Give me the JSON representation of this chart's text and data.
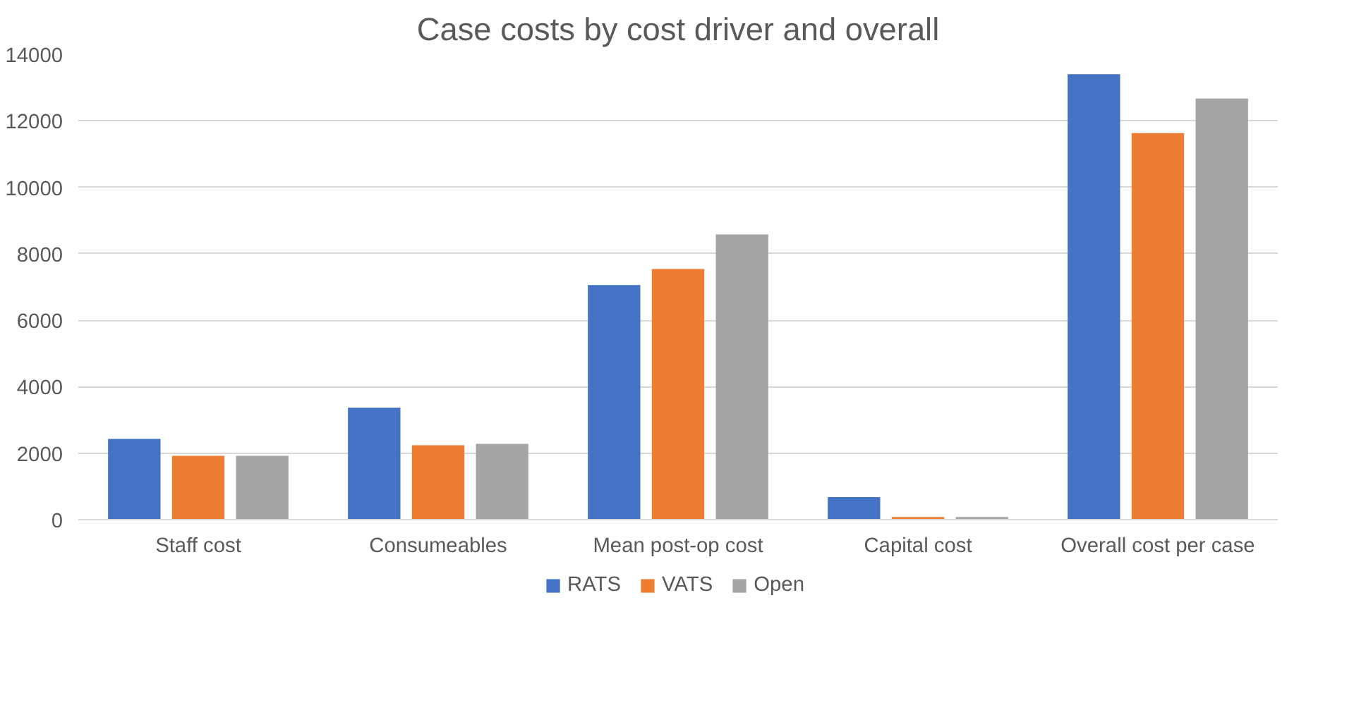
{
  "chart_data": {
    "type": "bar",
    "title": "Case costs by cost driver and overall",
    "categories": [
      "Staff cost",
      "Consumeables",
      "Mean post-op cost",
      "Capital cost",
      "Overall cost per case"
    ],
    "series": [
      {
        "name": "RATS",
        "color": "#4472c4",
        "values": [
          2430,
          3370,
          7060,
          680,
          13400
        ]
      },
      {
        "name": "VATS",
        "color": "#ed7d31",
        "values": [
          1920,
          2240,
          7540,
          80,
          11630
        ]
      },
      {
        "name": "Open",
        "color": "#a5a5a5",
        "values": [
          1920,
          2280,
          8580,
          80,
          12670
        ]
      }
    ],
    "ylim": [
      0,
      14000
    ],
    "yticks": [
      0,
      2000,
      4000,
      6000,
      8000,
      10000,
      12000,
      14000
    ],
    "grid": "y",
    "legend": "bottom"
  }
}
